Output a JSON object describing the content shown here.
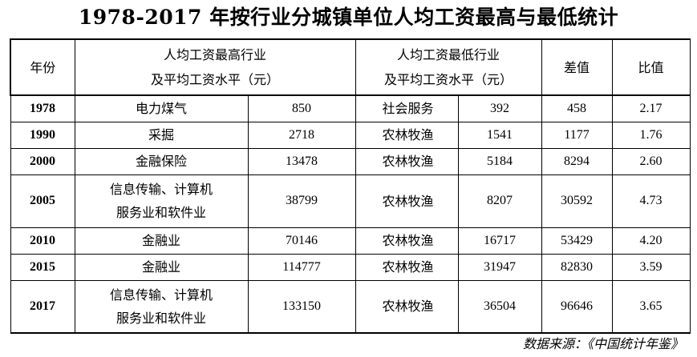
{
  "title": "1978-2017 年按行业分城镇单位人均工资最高与最低统计",
  "header": {
    "year": "年份",
    "high_line1": "人均工资最高行业",
    "high_line2": "及平均工资水平（元）",
    "low_line1": "人均工资最低行业",
    "low_line2": "及平均工资水平（元）",
    "diff": "差值",
    "ratio": "比值"
  },
  "rows": [
    {
      "year": "1978",
      "high_industry": "电力煤气",
      "high_wage": "850",
      "low_industry": "社会服务",
      "low_wage": "392",
      "diff": "458",
      "ratio": "2.17"
    },
    {
      "year": "1990",
      "high_industry": "采掘",
      "high_wage": "2718",
      "low_industry": "农林牧渔",
      "low_wage": "1541",
      "diff": "1177",
      "ratio": "1.76"
    },
    {
      "year": "2000",
      "high_industry": "金融保险",
      "high_wage": "13478",
      "low_industry": "农林牧渔",
      "low_wage": "5184",
      "diff": "8294",
      "ratio": "2.60"
    },
    {
      "year": "2005",
      "high_industry": "信息传输、计算机服务业和软件业",
      "high_industry_line1": "信息传输、计算机",
      "high_industry_line2": "服务业和软件业",
      "high_wage": "38799",
      "low_industry": "农林牧渔",
      "low_wage": "8207",
      "diff": "30592",
      "ratio": "4.73"
    },
    {
      "year": "2010",
      "high_industry": "金融业",
      "high_wage": "70146",
      "low_industry": "农林牧渔",
      "low_wage": "16717",
      "diff": "53429",
      "ratio": "4.20"
    },
    {
      "year": "2015",
      "high_industry": "金融业",
      "high_wage": "114777",
      "low_industry": "农林牧渔",
      "low_wage": "31947",
      "diff": "82830",
      "ratio": "3.59"
    },
    {
      "year": "2017",
      "high_industry": "信息传输、计算机服务业和软件业",
      "high_industry_line1": "信息传输、计算机",
      "high_industry_line2": "服务业和软件业",
      "high_wage": "133150",
      "low_industry": "农林牧渔",
      "low_wage": "36504",
      "diff": "96646",
      "ratio": "3.65"
    }
  ],
  "source": "数据来源：《中国统计年鉴》"
}
